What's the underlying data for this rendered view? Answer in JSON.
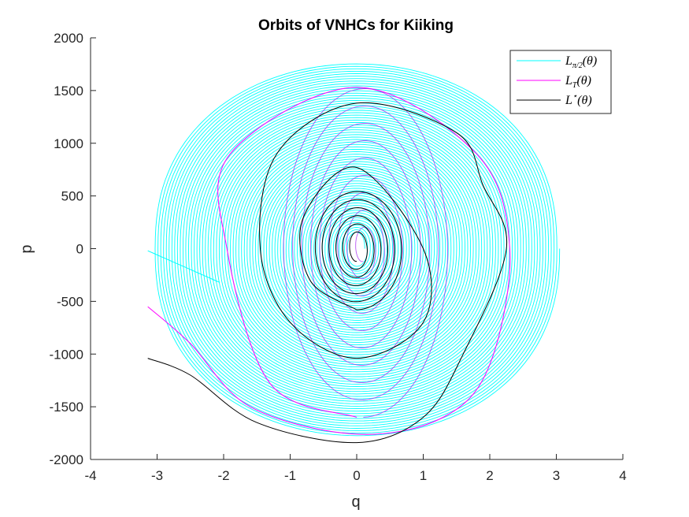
{
  "chart_data": {
    "type": "line",
    "title": "Orbits of VNHCs for Kiiking",
    "xlabel": "q",
    "ylabel": "p",
    "xlim": [
      -4,
      4
    ],
    "ylim": [
      -2000,
      2000
    ],
    "xticks": [
      "-4",
      "-3",
      "-2",
      "-1",
      "0",
      "1",
      "2",
      "3",
      "4"
    ],
    "yticks": [
      "-2000",
      "-1500",
      "-1000",
      "-500",
      "0",
      "500",
      "1000",
      "1500",
      "2000"
    ],
    "grid": false,
    "legend_position": "top-right",
    "series": [
      {
        "name": "L_{π/2}(θ)",
        "legend_main": "L",
        "legend_sub": "π/2",
        "legend_arg": "(θ)",
        "color": "#00ffff",
        "start": [
          -3.14,
          -20
        ],
        "outer_orbit": {
          "q_extent": 3.05,
          "p_top": 1770,
          "p_bottom": -1780
        },
        "spiral_center": [
          0,
          0
        ],
        "spiral_inner_radius": [
          0.12,
          150
        ]
      },
      {
        "name": "L_T(θ)",
        "legend_main": "L",
        "legend_sub": "T",
        "legend_arg": "(θ)",
        "color": "#ff00ff",
        "start": [
          -3.14,
          -550
        ],
        "orbit_points": [
          [
            -3.14,
            -550
          ],
          [
            -2.5,
            -900
          ],
          [
            -1.6,
            -1500
          ],
          [
            0,
            -1760
          ],
          [
            1.3,
            -1600
          ],
          [
            2.0,
            -1100
          ],
          [
            2.3,
            0
          ],
          [
            1.8,
            900
          ],
          [
            0,
            1530
          ],
          [
            -1.9,
            900
          ],
          [
            -1.95,
            0
          ],
          [
            -1.3,
            -1280
          ],
          [
            0,
            -1600
          ]
        ],
        "spiral_center": [
          0.1,
          0
        ]
      },
      {
        "name": "L*(θ)",
        "legend_main": "L",
        "legend_sub": "⋆",
        "legend_arg": "(θ)",
        "color": "#000000",
        "start": [
          -3.14,
          -1040
        ],
        "orbit_points": [
          [
            -3.14,
            -1040
          ],
          [
            -2.5,
            -1200
          ],
          [
            -1.5,
            -1650
          ],
          [
            0,
            -1840
          ],
          [
            1.0,
            -1600
          ],
          [
            1.6,
            -1000
          ],
          [
            2.25,
            0
          ],
          [
            1.9,
            600
          ],
          [
            1.5,
            1100
          ],
          [
            0,
            1380
          ],
          [
            -1.2,
            900
          ],
          [
            -1.45,
            0
          ],
          [
            -1.0,
            -700
          ],
          [
            0,
            -1040
          ],
          [
            1.0,
            -700
          ],
          [
            1.0,
            0
          ],
          [
            0,
            770
          ],
          [
            -0.8,
            300
          ],
          [
            -0.7,
            -300
          ],
          [
            0,
            -580
          ]
        ],
        "spiral_center": [
          0,
          0
        ]
      }
    ]
  }
}
